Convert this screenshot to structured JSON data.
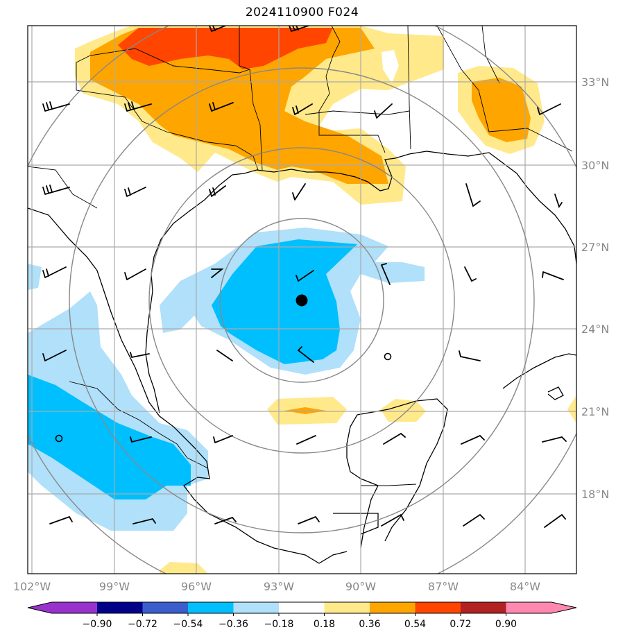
{
  "title": "2024110900 F024",
  "lat_labels": [
    "33°N",
    "30°N",
    "27°N",
    "24°N",
    "21°N",
    "18°N"
  ],
  "lon_labels": [
    "102°W",
    "99°W",
    "96°W",
    "93°W",
    "90°W",
    "87°W",
    "84°W"
  ],
  "colorbar": {
    "ticks": [
      "−0.90",
      "−0.72",
      "−0.54",
      "−0.36",
      "−0.18",
      "0.18",
      "0.36",
      "0.54",
      "0.72",
      "0.90"
    ],
    "colors": [
      "#9932cc",
      "#00008b",
      "#3a5fcd",
      "#00bfff",
      "#b0e0fa",
      "#ffffff",
      "#ffe98a",
      "#ffa500",
      "#ff4500",
      "#b22222",
      "#ff88b0"
    ]
  },
  "storm_center": {
    "lon": -92.0,
    "lat": 25.0
  }
}
